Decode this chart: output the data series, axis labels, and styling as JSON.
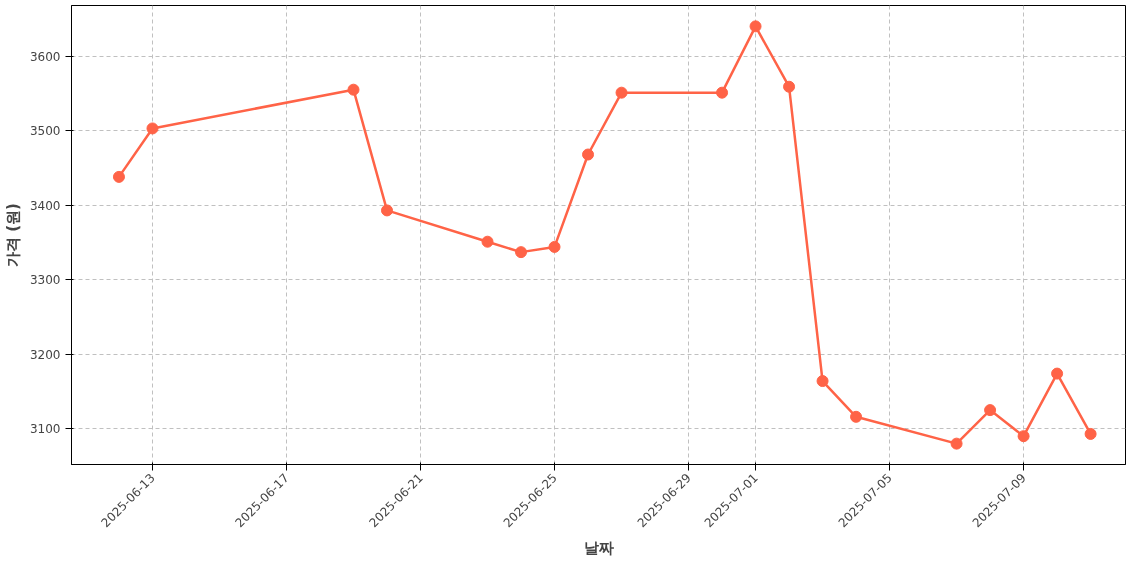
{
  "chart_data": {
    "type": "line",
    "xlabel": "날짜",
    "ylabel": "가격 (원)",
    "x": [
      "2025-06-12",
      "2025-06-13",
      "2025-06-19",
      "2025-06-20",
      "2025-06-23",
      "2025-06-24",
      "2025-06-25",
      "2025-06-26",
      "2025-06-27",
      "2025-06-30",
      "2025-07-01",
      "2025-07-02",
      "2025-07-03",
      "2025-07-04",
      "2025-07-07",
      "2025-07-08",
      "2025-07-09",
      "2025-07-10",
      "2025-07-11"
    ],
    "series": [
      {
        "color": "#ff6347",
        "values": [
          3438,
          3503,
          3555,
          3393,
          3351,
          3337,
          3344,
          3468,
          3551,
          3551,
          3640,
          3559,
          3164,
          3116,
          3080,
          3125,
          3090,
          3174,
          3093
        ]
      }
    ],
    "xlim": [
      "2025-06-10T14:00",
      "2025-07-12T01:00"
    ],
    "ylim": [
      3052,
      3668
    ],
    "xticks": [
      "2025-06-13",
      "2025-06-17",
      "2025-06-21",
      "2025-06-25",
      "2025-06-29",
      "2025-07-01",
      "2025-07-05",
      "2025-07-09"
    ],
    "yticks": [
      3100,
      3200,
      3300,
      3400,
      3500,
      3600
    ],
    "grid": true,
    "marker": "circle",
    "line_style": "solid"
  }
}
